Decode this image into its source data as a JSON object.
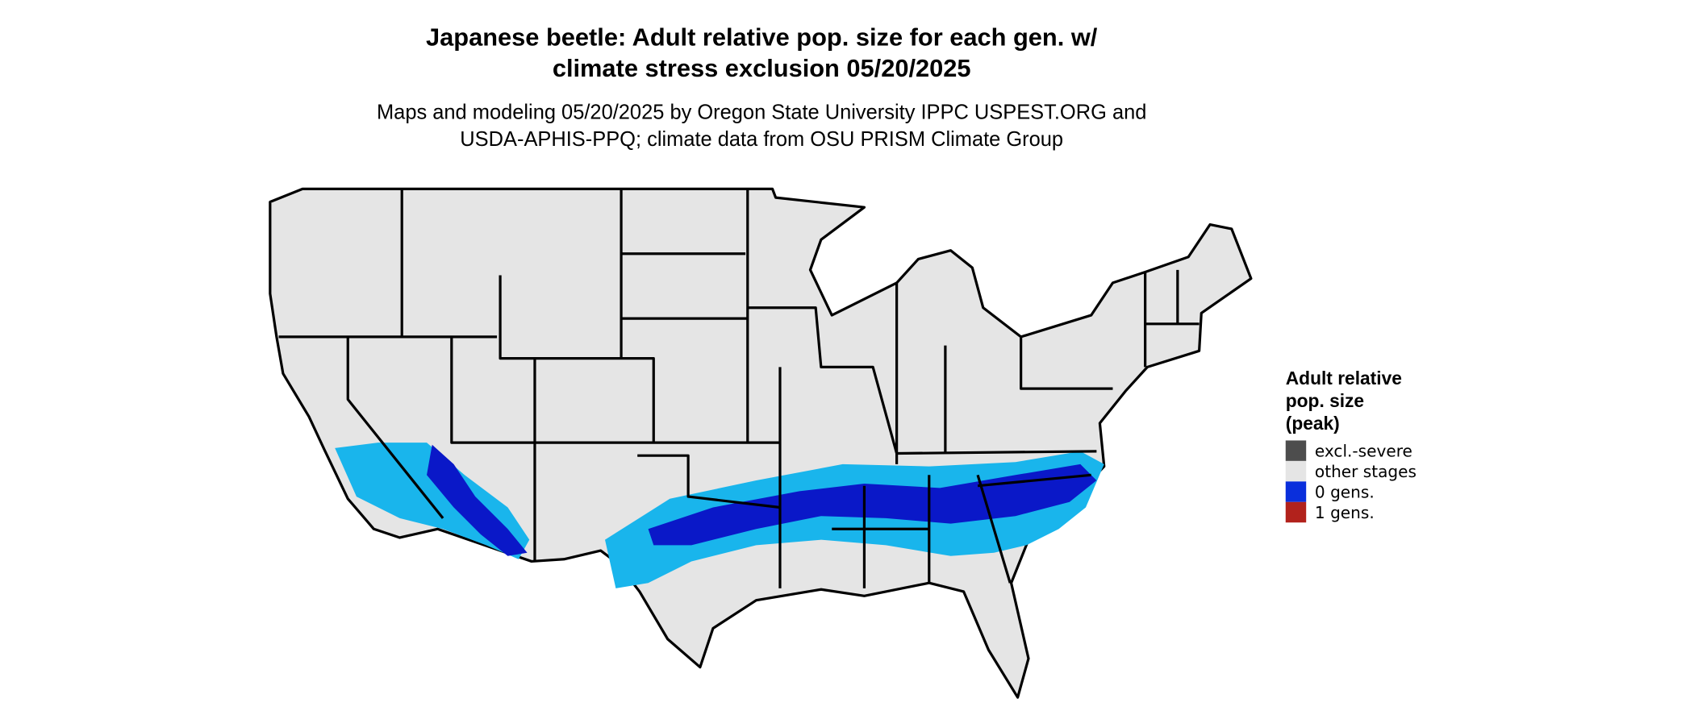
{
  "header": {
    "title": [
      "Japanese beetle: Adult relative pop. size for each gen. w/",
      "climate stress exclusion 05/20/2025"
    ],
    "subtitle": [
      "Maps and modeling 05/20/2025 by Oregon State University IPPC USPEST.ORG and",
      "USDA-APHIS-PPQ; climate data from OSU PRISM Climate Group"
    ]
  },
  "legend": {
    "title": [
      "Adult relative",
      "pop. size",
      "(peak)"
    ],
    "items": [
      {
        "label": "excl.-severe",
        "color": "#4d4d4d"
      },
      {
        "label": "other stages",
        "color": "#e5e5e5"
      },
      {
        "label": "0 gens.",
        "color": "#0a2fdc"
      },
      {
        "label": "1 gens.",
        "color": "#b2221c"
      }
    ]
  }
}
